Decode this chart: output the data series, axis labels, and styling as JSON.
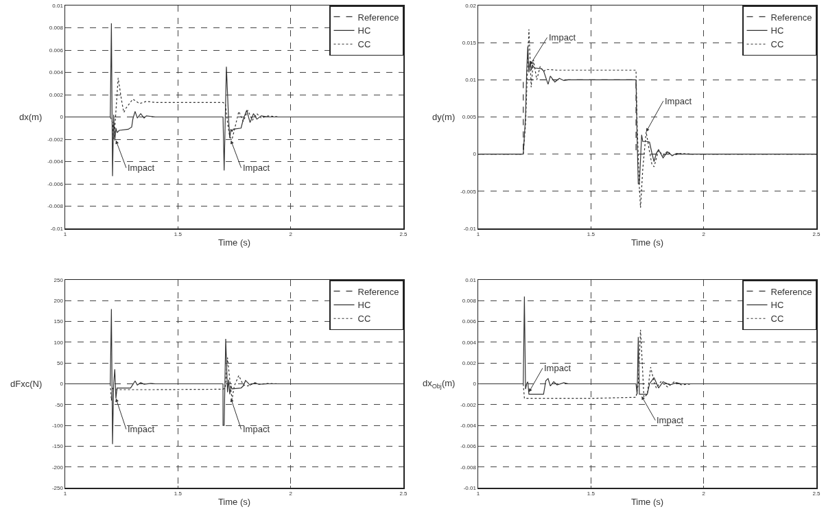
{
  "chart_data": [
    {
      "type": "line",
      "xlabel": "Time (s)",
      "ylabel": "dx(m)",
      "xlim": [
        1,
        2.5
      ],
      "xticks": [
        1,
        1.5,
        2,
        2.5
      ],
      "ylim": [
        -0.01,
        0.01
      ],
      "yticks": [
        -0.01,
        -0.008,
        -0.006,
        -0.004,
        -0.002,
        0,
        0.002,
        0.004,
        0.006,
        0.008,
        0.01
      ],
      "grid": true,
      "legend": "top right",
      "series": [
        {
          "name": "Reference",
          "color": "#333333",
          "line_style": "dashed",
          "x": [
            1,
            2.5
          ],
          "values": [
            0,
            0
          ]
        },
        {
          "name": "HC",
          "color": "#333333",
          "line_style": "solid",
          "x": [
            1,
            1.2,
            1.205,
            1.21,
            1.215,
            1.22,
            1.225,
            1.23,
            1.24,
            1.28,
            1.295,
            1.3,
            1.31,
            1.32,
            1.335,
            1.35,
            1.36,
            1.4,
            1.7,
            1.705,
            1.715,
            1.725,
            1.73,
            1.735,
            1.74,
            1.745,
            1.78,
            1.79,
            1.805,
            1.82,
            1.835,
            1.85,
            1.87,
            1.9,
            2.5
          ],
          "values": [
            0,
            0,
            0.0084,
            -0.0053,
            0.0002,
            -0.0021,
            -0.001,
            -0.0014,
            -0.0012,
            -0.0011,
            -0.0009,
            -0.0002,
            0.0005,
            -0.0001,
            0.0003,
            -0.0001,
            0.0001,
            0,
            0,
            -0.0048,
            0.0045,
            -0.0003,
            -0.0019,
            -0.0011,
            -0.0013,
            -0.0011,
            -0.001,
            -0.0002,
            0.0006,
            -0.0005,
            0.0003,
            -0.0002,
            0.0001,
            0,
            0
          ]
        },
        {
          "name": "CC",
          "color": "#333333",
          "line_style": "dotted",
          "x": [
            1,
            1.2,
            1.21,
            1.215,
            1.22,
            1.235,
            1.25,
            1.26,
            1.27,
            1.3,
            1.33,
            1.36,
            1.4,
            1.5,
            1.7,
            1.71,
            1.72,
            1.73,
            1.74,
            1.75,
            1.77,
            1.79,
            1.81,
            1.83,
            1.85,
            1.87,
            1.9,
            1.95,
            2.5
          ],
          "values": [
            0,
            0,
            -0.0005,
            -0.002,
            -0.001,
            0.0035,
            0.0015,
            0.0004,
            0.0008,
            0.0016,
            0.0012,
            0.0014,
            0.0013,
            0.0013,
            0.0013,
            0.0012,
            -0.0005,
            -0.0018,
            -0.002,
            -0.0012,
            0.0005,
            -0.0004,
            0.0006,
            -0.0003,
            0.0003,
            -0.0001,
            0.0001,
            0,
            0
          ]
        }
      ],
      "annotations": [
        {
          "text": "Impact",
          "x": 1.225,
          "y": -0.0021
        },
        {
          "text": "Impact",
          "x": 1.735,
          "y": -0.0021
        }
      ]
    },
    {
      "type": "line",
      "xlabel": "Time (s)",
      "ylabel": "dy(m)",
      "xlim": [
        1,
        2.5
      ],
      "xticks": [
        1,
        1.5,
        2,
        2.5
      ],
      "ylim": [
        -0.01,
        0.02
      ],
      "yticks": [
        -0.01,
        -0.005,
        0,
        0.005,
        0.01,
        0.015,
        0.02
      ],
      "grid": true,
      "legend": "top right",
      "series": [
        {
          "name": "Reference",
          "color": "#333333",
          "line_style": "dashed",
          "x": [
            1,
            1.2,
            1.2,
            1.7,
            1.7,
            2.5
          ],
          "values": [
            0,
            0,
            0.01,
            0.01,
            0,
            0
          ]
        },
        {
          "name": "HC",
          "color": "#333333",
          "line_style": "solid",
          "x": [
            1,
            1.2,
            1.21,
            1.215,
            1.22,
            1.225,
            1.23,
            1.235,
            1.24,
            1.25,
            1.28,
            1.29,
            1.31,
            1.32,
            1.34,
            1.36,
            1.38,
            1.4,
            1.7,
            1.705,
            1.71,
            1.715,
            1.725,
            1.73,
            1.75,
            1.76,
            1.77,
            1.78,
            1.79,
            1.8,
            1.82,
            1.84,
            1.86,
            1.88,
            1.9,
            2.5
          ],
          "values": [
            0,
            0,
            0.005,
            0.011,
            0.0145,
            0.011,
            0.0125,
            0.0113,
            0.012,
            0.0116,
            0.0115,
            0.0112,
            0.0094,
            0.0105,
            0.0097,
            0.0102,
            0.0099,
            0.01,
            0.01,
            0.002,
            -0.004,
            -0.004,
            0.0026,
            0.0017,
            0.0017,
            0.0016,
            0.0002,
            -0.001,
            0.0001,
            0.0006,
            -0.0005,
            0.0003,
            -0.0002,
            0.0001,
            0,
            0
          ]
        },
        {
          "name": "CC",
          "color": "#333333",
          "line_style": "dotted",
          "x": [
            1,
            1.2,
            1.21,
            1.22,
            1.225,
            1.23,
            1.235,
            1.245,
            1.26,
            1.275,
            1.29,
            1.3,
            1.35,
            1.7,
            1.705,
            1.715,
            1.72,
            1.73,
            1.745,
            1.76,
            1.77,
            1.78,
            1.8,
            1.82,
            1.84,
            1.86,
            1.9,
            1.95,
            2.5
          ],
          "values": [
            0,
            0,
            0.004,
            0.0125,
            0.0168,
            0.013,
            0.009,
            0.0127,
            0.01,
            0.0118,
            0.0111,
            0.0114,
            0.0113,
            0.0113,
            0.004,
            -0.0045,
            -0.0072,
            -0.002,
            0.003,
            0.0003,
            -0.0013,
            -0.0017,
            0.0005,
            -0.0002,
            0.0004,
            -0.0002,
            0.0001,
            0,
            0
          ]
        }
      ],
      "annotations": [
        {
          "text": "Impact",
          "x": 1.23,
          "y": 0.012
        },
        {
          "text": "Impact",
          "x": 1.745,
          "y": 0.003
        }
      ]
    },
    {
      "type": "line",
      "xlabel": "Time (s)",
      "ylabel": "dFxc(N)",
      "xlim": [
        1,
        2.5
      ],
      "xticks": [
        1,
        1.5,
        2,
        2.5
      ],
      "ylim": [
        -250,
        250
      ],
      "yticks": [
        -250,
        -200,
        -150,
        -100,
        -50,
        0,
        50,
        100,
        150,
        200,
        250
      ],
      "grid": true,
      "legend": "top right",
      "series": [
        {
          "name": "Reference",
          "color": "#333333",
          "line_style": "dashed",
          "x": [
            1,
            2.5
          ],
          "values": [
            0,
            0
          ]
        },
        {
          "name": "HC",
          "color": "#333333",
          "line_style": "solid",
          "x": [
            1,
            1.2,
            1.205,
            1.21,
            1.215,
            1.22,
            1.225,
            1.23,
            1.29,
            1.3,
            1.31,
            1.32,
            1.335,
            1.35,
            1.38,
            1.4,
            1.7,
            1.7,
            1.705,
            1.712,
            1.72,
            1.725,
            1.73,
            1.735,
            1.74,
            1.78,
            1.79,
            1.8,
            1.82,
            1.84,
            1.86,
            1.9,
            2.5
          ],
          "values": [
            0,
            0,
            180,
            -145,
            0,
            35,
            -35,
            -10,
            -10,
            -2,
            7,
            -3,
            3,
            -1,
            1,
            0,
            0,
            -100,
            -100,
            108,
            -20,
            10,
            -25,
            -5,
            -12,
            -10,
            -5,
            8,
            -3,
            2,
            -1,
            0,
            0
          ]
        },
        {
          "name": "CC",
          "color": "#333333",
          "line_style": "dotted",
          "x": [
            1,
            1.2,
            1.205,
            1.21,
            1.215,
            1.3,
            1.4,
            1.7,
            1.71,
            1.72,
            1.73,
            1.74,
            1.75,
            1.77,
            1.79,
            1.81,
            1.84,
            1.86,
            1.9,
            1.95,
            2.5
          ],
          "values": [
            0,
            0,
            -40,
            -10,
            -14,
            -14,
            -14,
            -13,
            -10,
            63,
            10,
            -38,
            -5,
            20,
            -3,
            -5,
            3,
            -1,
            1,
            0,
            0
          ]
        }
      ],
      "annotations": [
        {
          "text": "Impact",
          "x": 1.225,
          "y": -35
        },
        {
          "text": "Impact",
          "x": 1.735,
          "y": -35
        }
      ]
    },
    {
      "type": "line",
      "xlabel": "Time (s)",
      "ylabel": "dx$_{Obj}$(m)",
      "xlim": [
        1,
        2.5
      ],
      "xticks": [
        1,
        1.5,
        2,
        2.5
      ],
      "ylim": [
        -0.01,
        0.01
      ],
      "yticks": [
        -0.01,
        -0.008,
        -0.006,
        -0.004,
        -0.002,
        0,
        0.002,
        0.004,
        0.006,
        0.008,
        0.01
      ],
      "grid": true,
      "legend": "top right",
      "series": [
        {
          "name": "Reference",
          "color": "#333333",
          "line_style": "dashed",
          "x": [
            1,
            2.5
          ],
          "values": [
            0,
            0
          ]
        },
        {
          "name": "HC",
          "color": "#333333",
          "line_style": "solid",
          "x": [
            1,
            1.2,
            1.205,
            1.21,
            1.215,
            1.22,
            1.225,
            1.29,
            1.3,
            1.31,
            1.32,
            1.335,
            1.35,
            1.38,
            1.4,
            1.7,
            1.705,
            1.71,
            1.715,
            1.75,
            1.76,
            1.78,
            1.8,
            1.82,
            1.85,
            1.88,
            1.9,
            2.5
          ],
          "values": [
            0,
            0,
            0.0084,
            -0.0005,
            0,
            0.0002,
            -0.001,
            -0.001,
            0.0003,
            0.0005,
            -0.0002,
            0.0002,
            -0.0001,
            0.0001,
            0,
            0,
            -0.001,
            0.0045,
            -0.001,
            -0.001,
            0,
            0.0006,
            -0.0004,
            0.0002,
            -0.0001,
            0.0001,
            0,
            0
          ]
        },
        {
          "name": "CC",
          "color": "#333333",
          "line_style": "dotted",
          "x": [
            1,
            1.2,
            1.205,
            1.25,
            1.5,
            1.7,
            1.71,
            1.72,
            1.73,
            1.735,
            1.75,
            1.765,
            1.78,
            1.79,
            1.81,
            1.84,
            1.87,
            1.9,
            1.95,
            2.5
          ],
          "values": [
            0,
            0,
            -0.0014,
            -0.0014,
            -0.0014,
            -0.0013,
            0,
            0.0052,
            0.001,
            -0.0013,
            -0.001,
            0.0016,
            0.0002,
            -0.0004,
            0.0002,
            -0.0003,
            0.0002,
            -0.0001,
            0,
            0
          ]
        }
      ],
      "annotations": [
        {
          "text": "Impact",
          "x": 1.225,
          "y": -0.0008
        },
        {
          "text": "Impact",
          "x": 1.725,
          "y": -0.0012
        }
      ]
    }
  ]
}
